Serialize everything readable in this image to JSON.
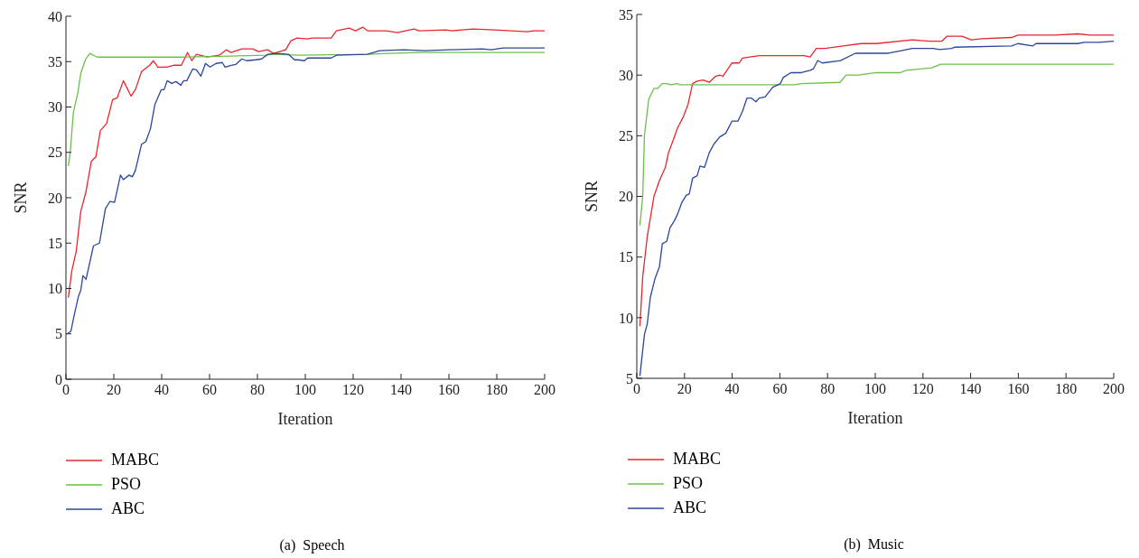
{
  "chart_data": [
    {
      "type": "line",
      "xlabel": "Iteration",
      "ylabel": "SNR",
      "xlim": [
        0,
        200
      ],
      "xticks": [
        0,
        20,
        40,
        60,
        80,
        100,
        120,
        140,
        160,
        180,
        200
      ],
      "ylim": [
        0,
        40
      ],
      "yticks": [
        0,
        5,
        10,
        15,
        20,
        25,
        30,
        35,
        40
      ],
      "legend": "bottom left",
      "annotations": [
        "(a)  Speech"
      ],
      "series": [
        {
          "name": "MABC",
          "color": "#e8262d",
          "x": [
            1,
            2.5,
            4.3,
            6.2,
            8.4,
            10.6,
            12.5,
            14.4,
            17,
            19.5,
            21.4,
            24,
            27.2,
            29,
            31.6,
            35,
            36.5,
            38.4,
            42,
            45,
            48.2,
            50.8,
            52.6,
            54.5,
            59,
            64,
            67,
            69,
            73.5,
            78,
            80.5,
            84.2,
            86.8,
            91.8,
            94,
            96.6,
            100.8,
            103,
            107,
            110.8,
            113,
            118.3,
            121,
            124,
            126,
            133.6,
            138.6,
            141.8,
            145.5,
            147.5,
            158.8,
            161.3,
            170,
            179,
            192.8,
            195.3,
            200
          ],
          "values": [
            9,
            12,
            14.1,
            18.5,
            20.7,
            24,
            24.5,
            27.4,
            28.2,
            30.8,
            31,
            32.9,
            31.2,
            31.9,
            33.9,
            34.6,
            35.1,
            34.4,
            34.4,
            34.6,
            34.6,
            36,
            35.1,
            35.8,
            35.5,
            35.7,
            36.3,
            36,
            36.4,
            36.4,
            36.1,
            36.3,
            35.9,
            36.3,
            37.3,
            37.6,
            37.5,
            37.6,
            37.6,
            37.6,
            38.4,
            38.7,
            38.4,
            38.8,
            38.4,
            38.4,
            38.2,
            38.4,
            38.6,
            38.4,
            38.5,
            38.4,
            38.6,
            38.5,
            38.3,
            38.4,
            38.4
          ]
        },
        {
          "name": "PSO",
          "color": "#6cbf4b",
          "x": [
            1,
            1.9,
            3.1,
            5,
            6.2,
            8.1,
            10,
            13,
            50,
            83.5,
            86.8,
            97,
            126,
            135,
            147.5,
            200
          ],
          "values": [
            23.5,
            25.3,
            29.4,
            31.6,
            33.7,
            35.2,
            35.9,
            35.5,
            35.5,
            35.7,
            35.8,
            35.7,
            35.8,
            35.9,
            36,
            36
          ]
        },
        {
          "name": "ABC",
          "color": "#2a479c",
          "x": [
            0.6,
            2.1,
            3.4,
            5.2,
            6.2,
            7.1,
            8.4,
            11.5,
            14,
            16.5,
            18.4,
            20.3,
            22.8,
            24,
            26.4,
            27.7,
            29,
            31.6,
            33.4,
            35.3,
            37.2,
            39.8,
            41,
            42.3,
            44.2,
            46,
            48,
            49.2,
            50.5,
            53,
            54.5,
            56.4,
            58.3,
            60.2,
            62.7,
            65.3,
            66.5,
            69,
            71,
            73.5,
            75.5,
            79.2,
            81.8,
            84.2,
            88,
            93,
            95.5,
            97,
            99.6,
            101,
            110.8,
            113,
            126,
            131,
            141.2,
            150,
            160,
            174,
            177.6,
            182.7,
            200
          ],
          "values": [
            5,
            5.3,
            7,
            9.1,
            9.8,
            11.4,
            11,
            14.7,
            15,
            18.8,
            19.6,
            19.5,
            22.5,
            22,
            22.5,
            22.3,
            23,
            25.9,
            26.2,
            27.6,
            30.3,
            31.9,
            31.9,
            32.9,
            32.6,
            32.8,
            32.4,
            32.9,
            32.9,
            34.2,
            34.1,
            33.4,
            34.8,
            34.4,
            34.8,
            34.9,
            34.4,
            34.6,
            34.7,
            35.3,
            35.1,
            35.2,
            35.3,
            35.8,
            35.9,
            35.8,
            35.2,
            35.2,
            35.1,
            35.4,
            35.4,
            35.7,
            35.8,
            36.2,
            36.3,
            36.2,
            36.3,
            36.4,
            36.3,
            36.5,
            36.5
          ]
        }
      ]
    },
    {
      "type": "line",
      "xlabel": "Iteration",
      "ylabel": "SNR",
      "xlim": [
        0,
        200
      ],
      "xticks": [
        0,
        20,
        40,
        60,
        80,
        100,
        120,
        140,
        160,
        180,
        200
      ],
      "ylim": [
        5,
        35
      ],
      "yticks": [
        5,
        10,
        15,
        20,
        25,
        30,
        35
      ],
      "legend": "bottom left",
      "annotations": [
        "(b)  Music"
      ],
      "series": [
        {
          "name": "MABC",
          "color": "#e8262d",
          "x": [
            1.3,
            2.5,
            4.4,
            7.2,
            9.5,
            12,
            13.3,
            15.2,
            17,
            19.6,
            21.5,
            23.4,
            25.3,
            27.8,
            30.4,
            33,
            34.8,
            36.1,
            39.9,
            43,
            44.3,
            51.3,
            58.8,
            70.2,
            72.7,
            75.3,
            79,
            86.6,
            94.2,
            100.5,
            115.5,
            123,
            128,
            130,
            136.4,
            140.2,
            144.6,
            157.2,
            159.8,
            175,
            185,
            190,
            200
          ],
          "values": [
            9.3,
            13.4,
            16.7,
            20,
            21.3,
            22.4,
            23.6,
            24.6,
            25.6,
            26.6,
            27.6,
            29.3,
            29.5,
            29.6,
            29.4,
            29.9,
            30,
            29.9,
            31,
            31,
            31.4,
            31.6,
            31.6,
            31.6,
            31.5,
            32.2,
            32.2,
            32.4,
            32.6,
            32.6,
            32.9,
            32.8,
            32.8,
            33.2,
            33.2,
            32.9,
            33,
            33.1,
            33.3,
            33.3,
            33.4,
            33.3,
            33.3
          ]
        },
        {
          "name": "PSO",
          "color": "#6cbf4b",
          "x": [
            1.3,
            2.5,
            3.2,
            5,
            7.2,
            8.8,
            10.6,
            12.5,
            14.4,
            17,
            18.2,
            66.3,
            68.9,
            85.2,
            87.8,
            92.8,
            100.5,
            110.5,
            113,
            123.7,
            127.5,
            200
          ],
          "values": [
            17.6,
            20,
            25,
            28,
            28.9,
            28.9,
            29.3,
            29.3,
            29.2,
            29.3,
            29.2,
            29.2,
            29.3,
            29.4,
            30,
            30,
            30.2,
            30.2,
            30.4,
            30.6,
            30.9,
            30.9
          ]
        },
        {
          "name": "ABC",
          "color": "#2a479c",
          "x": [
            1.3,
            3.2,
            4.4,
            5.7,
            7.6,
            9.5,
            10.7,
            12.6,
            13.9,
            15.8,
            17,
            18.9,
            20.8,
            22,
            23.4,
            25.3,
            26.5,
            28.4,
            30.4,
            32.3,
            34.8,
            37.3,
            39.9,
            42.4,
            44.3,
            46.2,
            48.1,
            50,
            51.3,
            53.8,
            57,
            60.2,
            61.4,
            64.6,
            69,
            72.7,
            74,
            75.9,
            77.8,
            85.4,
            91.7,
            105.5,
            110.5,
            115.5,
            124.4,
            126.9,
            132,
            133.3,
            157.2,
            159.8,
            166,
            167.4,
            185,
            187.6,
            194,
            200
          ],
          "values": [
            5.2,
            8.6,
            9.5,
            11.7,
            13.2,
            14.2,
            16.1,
            16.3,
            17.4,
            18,
            18.5,
            19.5,
            20.1,
            20.2,
            21.5,
            21.7,
            22.5,
            22.4,
            23.6,
            24.3,
            24.9,
            25.2,
            26.2,
            26.2,
            27,
            28.1,
            28.1,
            27.8,
            28.1,
            28.2,
            29,
            29.3,
            29.8,
            30.2,
            30.2,
            30.4,
            30.5,
            31.2,
            31,
            31.2,
            31.8,
            31.8,
            32,
            32.2,
            32.2,
            32.1,
            32.2,
            32.3,
            32.4,
            32.6,
            32.4,
            32.6,
            32.6,
            32.7,
            32.7,
            32.8
          ]
        }
      ]
    }
  ]
}
